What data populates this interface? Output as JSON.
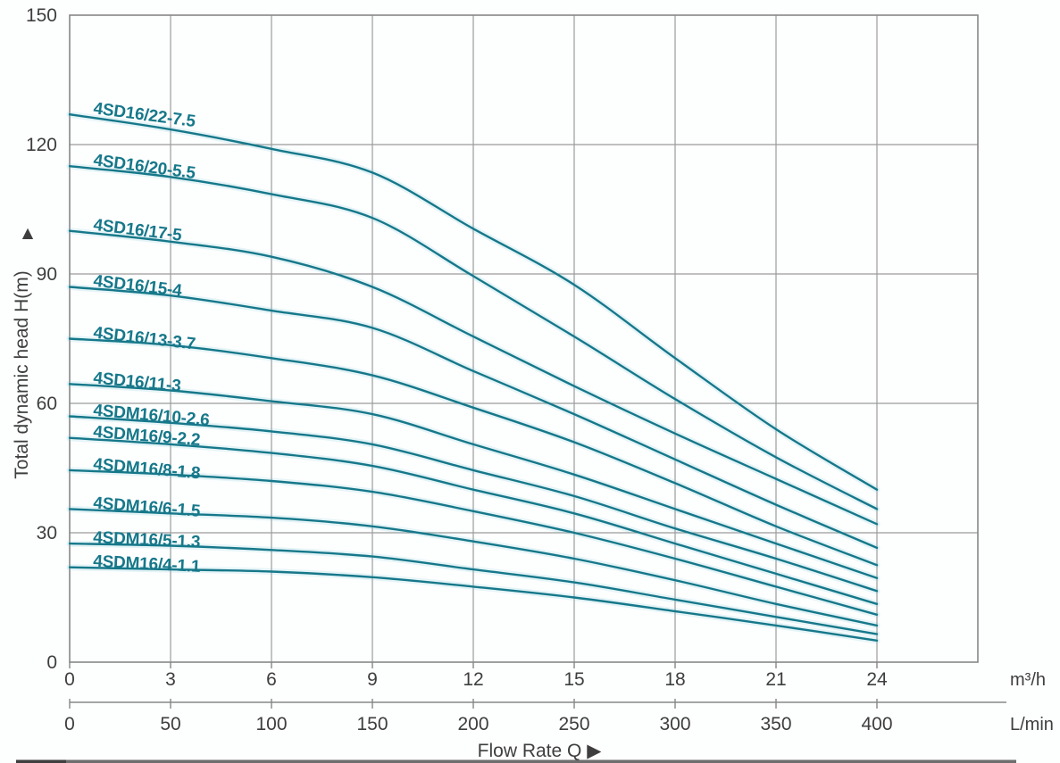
{
  "figure": {
    "background": "#fdfefe",
    "curve_color": "#16788A",
    "grid_color": "#9C9C9C",
    "border_color": "#878787",
    "text_color": "#3E3E3E"
  },
  "chart_data": {
    "type": "line",
    "title": "",
    "x_label": "Flow Rate Q ▶",
    "y_axis": {
      "label": "Total dynamic head H(m)",
      "arrow": "▲",
      "ticks": [
        0,
        30,
        60,
        90,
        120,
        150
      ],
      "range": [
        0,
        150
      ]
    },
    "x_axis_primary": {
      "unit": "m³/h",
      "ticks": [
        0,
        3,
        6,
        9,
        12,
        15,
        18,
        21,
        24
      ],
      "range": [
        0,
        27
      ]
    },
    "x_axis_secondary": {
      "unit": "L/min",
      "ticks": [
        0,
        50,
        100,
        150,
        200,
        250,
        300,
        350,
        400
      ]
    },
    "grid": true,
    "legend_position": "labels-on-curves",
    "x": [
      0,
      3,
      6,
      9,
      12,
      15,
      18,
      21,
      24
    ],
    "series": [
      {
        "name": "4SD16/22-7.5",
        "values": [
          127,
          123.5,
          119,
          113.5,
          100.5,
          87.5,
          70.5,
          54,
          40
        ],
        "label_angle": 7.5
      },
      {
        "name": "4SD16/20-5.5",
        "values": [
          115,
          112.5,
          108.5,
          103,
          89.5,
          75.5,
          61,
          47.5,
          35.5
        ],
        "label_angle": 7.5
      },
      {
        "name": "4SD16/17-5",
        "values": [
          100,
          97.5,
          94,
          87,
          75.5,
          64,
          53,
          42.5,
          32
        ],
        "label_angle": 7
      },
      {
        "name": "4SD16/15-4",
        "values": [
          87,
          85,
          81.5,
          77.5,
          67.5,
          57.5,
          47,
          36.5,
          26.5
        ],
        "label_angle": 6.5
      },
      {
        "name": "4SD16/13-3.7",
        "values": [
          75,
          73.5,
          70.5,
          66.5,
          59,
          51,
          41.5,
          31.5,
          22.5
        ],
        "label_angle": 6.5
      },
      {
        "name": "4SD16/11-3",
        "values": [
          64.5,
          63,
          60.5,
          57.5,
          50.5,
          43.5,
          35.5,
          27.5,
          19.5
        ],
        "label_angle": 5.5
      },
      {
        "name": "4SDM16/10-2.6",
        "values": [
          57,
          55.5,
          53.5,
          50.5,
          44.5,
          38.5,
          31,
          24,
          16.5
        ],
        "label_angle": 5
      },
      {
        "name": "4SDM16/9-2.2",
        "values": [
          52,
          50.5,
          48.5,
          45.5,
          40,
          34.5,
          27.5,
          20.5,
          13.5
        ],
        "label_angle": 4.5
      },
      {
        "name": "4SDM16/8-1.8",
        "values": [
          44.5,
          43.5,
          42,
          39.5,
          35,
          30,
          24,
          17.5,
          11
        ],
        "label_angle": 5
      },
      {
        "name": "4SDM16/6-1.5",
        "values": [
          35.5,
          34.5,
          33.5,
          31.5,
          28,
          24,
          19,
          13.5,
          8.5
        ],
        "label_angle": 4.5
      },
      {
        "name": "4SDM16/5-1.3",
        "values": [
          27.5,
          27,
          26,
          24.5,
          21.5,
          18.5,
          14.5,
          10.5,
          6.5
        ],
        "label_angle": 2.5
      },
      {
        "name": "4SDM16/4-1.1",
        "values": [
          22,
          21.5,
          21,
          19.7,
          17.5,
          15,
          11.8,
          8.5,
          5
        ],
        "label_angle": 3
      }
    ]
  }
}
